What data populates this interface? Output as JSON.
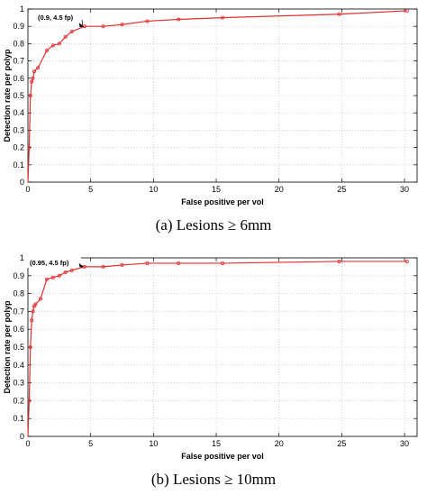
{
  "chart_data": [
    {
      "type": "line",
      "caption": "(a) Lesions ≥ 6mm",
      "xlabel": "False positive per vol",
      "ylabel": "Detection rate per polyp",
      "xlim": [
        0,
        31
      ],
      "ylim": [
        0,
        1
      ],
      "xticks": [
        0,
        5,
        10,
        15,
        20,
        25,
        30
      ],
      "yticks": [
        0,
        0.1,
        0.2,
        0.3,
        0.4,
        0.5,
        0.6,
        0.7,
        0.8,
        0.9,
        1
      ],
      "grid": true,
      "color": "#e03030",
      "series": [
        {
          "x": [
            0,
            0.1,
            0.2,
            0.3,
            0.4,
            0.5,
            0.8,
            1.5,
            2.0,
            2.5,
            3.0,
            3.5,
            4.5,
            6.0,
            7.5,
            9.5,
            12,
            15.5,
            24.8,
            30.2
          ],
          "y": [
            0.0,
            0.2,
            0.5,
            0.58,
            0.6,
            0.64,
            0.66,
            0.76,
            0.79,
            0.8,
            0.84,
            0.87,
            0.9,
            0.9,
            0.91,
            0.93,
            0.94,
            0.95,
            0.97,
            0.99
          ]
        }
      ],
      "annotation": {
        "text": "(0.9, 4.5 fp)",
        "x": 4.5,
        "y": 0.9
      }
    },
    {
      "type": "line",
      "caption": "(b) Lesions ≥ 10mm",
      "xlabel": "False positive per vol",
      "ylabel": "Detection rate per polyp",
      "xlim": [
        0,
        31
      ],
      "ylim": [
        0,
        1
      ],
      "xticks": [
        0,
        5,
        10,
        15,
        20,
        25,
        30
      ],
      "yticks": [
        0,
        0.1,
        0.2,
        0.3,
        0.4,
        0.5,
        0.6,
        0.7,
        0.8,
        0.9,
        1
      ],
      "grid": true,
      "color": "#e03030",
      "series": [
        {
          "x": [
            0,
            0.1,
            0.2,
            0.3,
            0.4,
            0.5,
            0.6,
            1.0,
            1.5,
            2.0,
            2.5,
            3.0,
            3.5,
            4.5,
            6.0,
            7.5,
            9.5,
            12,
            15.5,
            24.8,
            30.2
          ],
          "y": [
            0.0,
            0.2,
            0.5,
            0.65,
            0.7,
            0.73,
            0.74,
            0.77,
            0.88,
            0.89,
            0.9,
            0.92,
            0.93,
            0.95,
            0.95,
            0.96,
            0.97,
            0.97,
            0.97,
            0.98,
            0.98
          ]
        }
      ],
      "annotation": {
        "text": "(0.95, 4.5 fp)",
        "x": 4.5,
        "y": 0.95
      }
    }
  ]
}
